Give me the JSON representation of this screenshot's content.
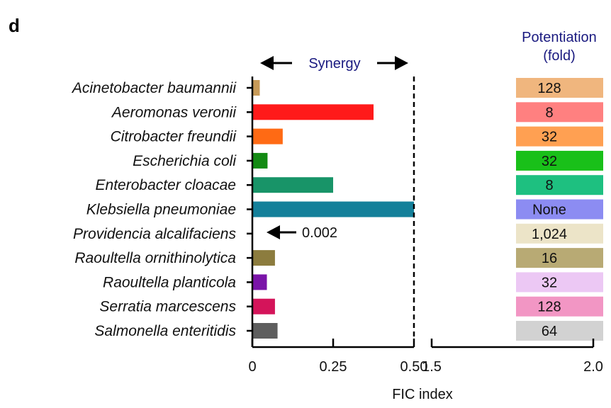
{
  "panel_label": "d",
  "synergy_label": "Synergy",
  "potentiation_title": [
    "Potentiation",
    "(fold)"
  ],
  "annotation": "0.002",
  "chart_data": {
    "type": "bar",
    "orientation": "horizontal",
    "xlabel": "FIC index",
    "broken_axis": true,
    "x_segments": [
      [
        0,
        0.5
      ],
      [
        1.5,
        2.0
      ]
    ],
    "threshold_line": 0.5,
    "x_ticks": [
      {
        "value": 0,
        "label": "0"
      },
      {
        "value": 0.25,
        "label": "0.25"
      },
      {
        "value": 0.5,
        "label": "0.50"
      },
      {
        "value": 1.5,
        "label": "1.5"
      },
      {
        "value": 2.0,
        "label": "2.0"
      }
    ],
    "categories": [
      "Acinetobacter baumannii",
      "Aeromonas veronii",
      "Citrobacter freundii",
      "Escherichia coli",
      "Enterobacter cloacae",
      "Klebsiella pneumoniae",
      "Providencia alcalifaciens",
      "Raoultella ornithinolytica",
      "Raoultella planticola",
      "Serratia marcescens",
      "Salmonella enteritidis"
    ],
    "values": [
      0.023,
      0.375,
      0.094,
      0.047,
      0.25,
      1.5,
      0.002,
      0.07,
      0.045,
      0.07,
      0.078
    ],
    "bar_colors": [
      "#c79a58",
      "#ff1a1a",
      "#ff6a14",
      "#138a13",
      "#189468",
      "#14809a",
      "#ffffff",
      "#8c7c3e",
      "#7a14a8",
      "#d4145a",
      "#5e5e5e"
    ],
    "potentiation": [
      "128",
      "8",
      "32",
      "32",
      "8",
      "None",
      "1,024",
      "16",
      "32",
      "128",
      "64"
    ],
    "potentiation_colors": [
      "#f0b67e",
      "#ff8080",
      "#ffa052",
      "#19c019",
      "#1ec080",
      "#8c8cf2",
      "#ece4c8",
      "#b8aa74",
      "#ecc8f4",
      "#f296c4",
      "#d2d2d2"
    ]
  }
}
